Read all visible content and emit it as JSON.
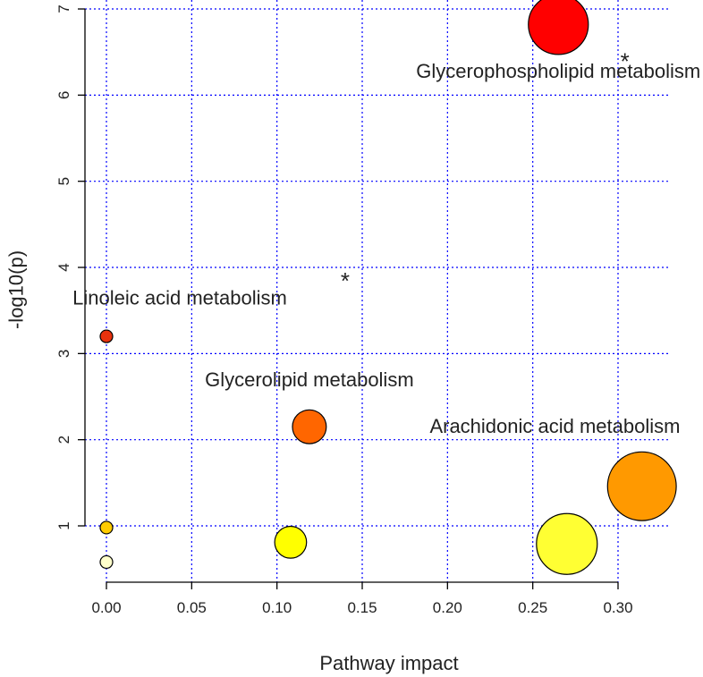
{
  "chart_data": {
    "type": "scatter",
    "title": "",
    "xlabel": "Pathway impact",
    "ylabel": "-log10(p)",
    "xlim": [
      -0.005,
      0.33
    ],
    "ylim": [
      0.4,
      7.0
    ],
    "x_ticks": [
      0.0,
      0.05,
      0.1,
      0.15,
      0.2,
      0.25,
      0.3
    ],
    "x_tick_labels": [
      "0.00",
      "0.05",
      "0.10",
      "0.15",
      "0.20",
      "0.25",
      "0.30"
    ],
    "y_ticks": [
      1,
      2,
      3,
      4,
      5,
      6,
      7
    ],
    "y_tick_labels": [
      "1",
      "2",
      "3",
      "4",
      "5",
      "6",
      "7"
    ],
    "grid": true,
    "grid_color": "#0000ff",
    "points": [
      {
        "x": 0.265,
        "y": 6.82,
        "impact_size": 0.265,
        "color": "#ff0000"
      },
      {
        "x": 0.0,
        "y": 3.2,
        "impact_size": 0.0,
        "color": "#e8320e"
      },
      {
        "x": 0.119,
        "y": 2.15,
        "impact_size": 0.119,
        "color": "#ff6600"
      },
      {
        "x": 0.314,
        "y": 1.46,
        "impact_size": 0.314,
        "color": "#ff9900"
      },
      {
        "x": 0.0,
        "y": 0.98,
        "impact_size": 0.0,
        "color": "#ffcc00"
      },
      {
        "x": 0.108,
        "y": 0.81,
        "impact_size": 0.108,
        "color": "#ffff00"
      },
      {
        "x": 0.27,
        "y": 0.79,
        "impact_size": 0.27,
        "color": "#ffff33"
      },
      {
        "x": 0.0,
        "y": 0.58,
        "impact_size": 0.0,
        "color": "#ffffcc"
      }
    ],
    "annotations": [
      {
        "text": "Glycerophospholipid metabolism",
        "x": 0.265,
        "y": 6.2
      },
      {
        "text": "Linoleic acid metabolism",
        "x": 0.043,
        "y": 3.57
      },
      {
        "text": "Glycerolipid metabolism",
        "x": 0.119,
        "y": 2.62
      },
      {
        "text": "Arachidonic acid metabolism",
        "x": 0.263,
        "y": 2.08
      }
    ],
    "markers": [
      {
        "text": "*",
        "x": 0.304,
        "y": 6.3
      },
      {
        "text": "*",
        "x": 0.14,
        "y": 3.75
      }
    ]
  }
}
